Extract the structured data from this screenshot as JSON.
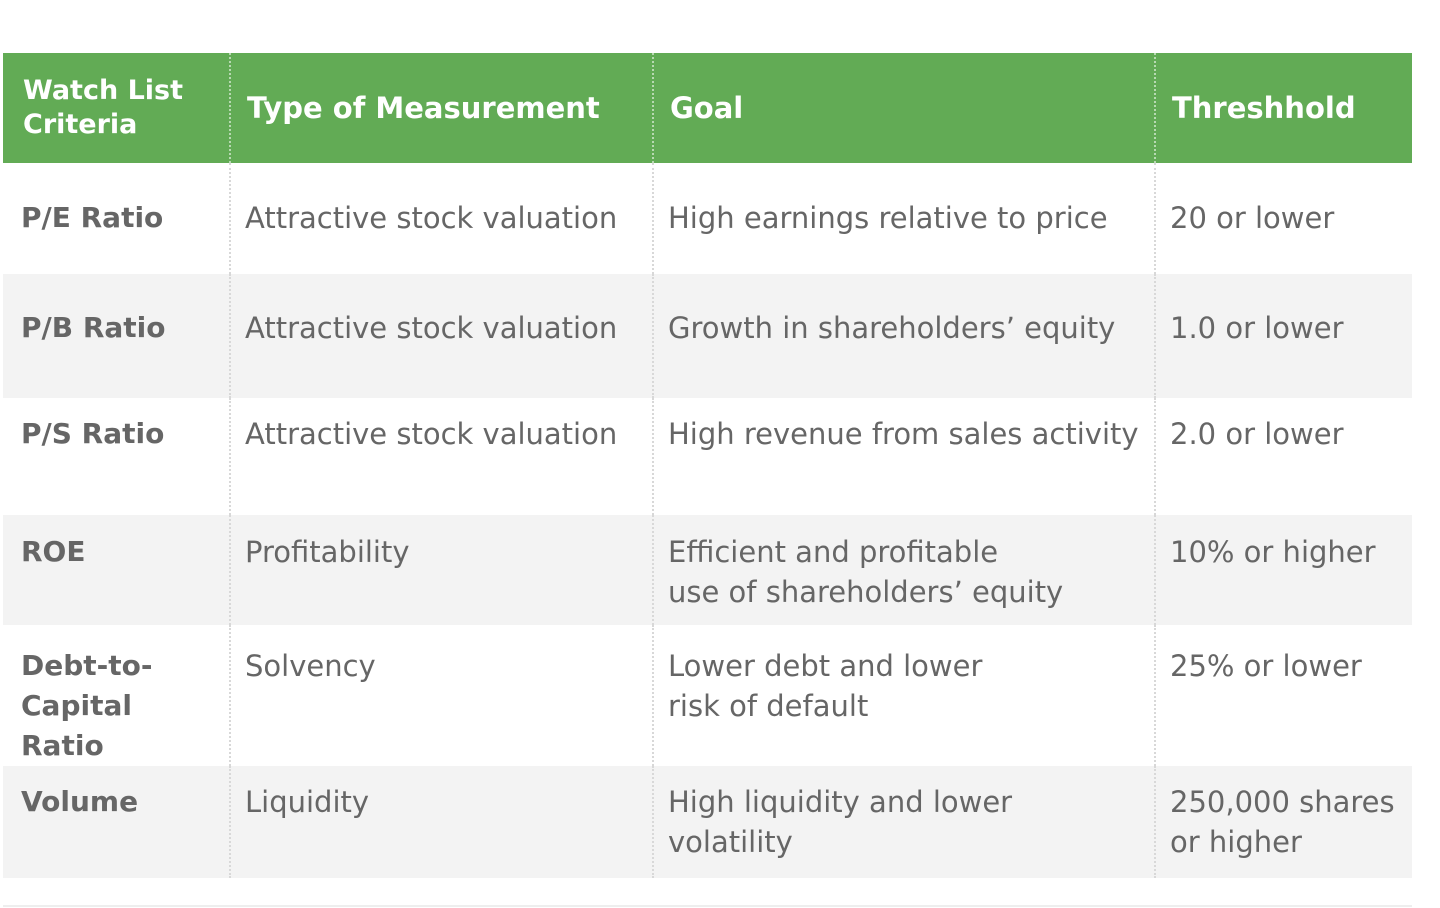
{
  "table": {
    "headers": [
      "Watch List Criteria",
      "Type of Measurement",
      "Goal",
      "Threshhold"
    ],
    "rows": [
      [
        "P/E Ratio",
        "Attractive stock valuation",
        "High earnings relative to price",
        "20 or lower"
      ],
      [
        "P/B Ratio",
        "Attractive stock valuation",
        "Growth in shareholders’ equity",
        "1.0 or lower"
      ],
      [
        "P/S Ratio",
        "Attractive stock valuation",
        "High revenue from sales activity",
        "2.0 or lower"
      ],
      [
        "ROE",
        "Profitability",
        "Efficient and profitable\nuse of shareholders’ equity",
        "10% or higher"
      ],
      [
        "Debt-to-Capital Ratio",
        "Solvency",
        "Lower debt and lower\nrisk of default",
        "25% or lower"
      ],
      [
        "Volume",
        "Liquidity",
        "High liquidity and lower volatility",
        "250,000 shares or higher"
      ]
    ]
  },
  "colors": {
    "header_background": "#62ab55",
    "header_text": "#ffffff",
    "body_text": "#666666",
    "stripe_background": "#f3f3f3"
  }
}
